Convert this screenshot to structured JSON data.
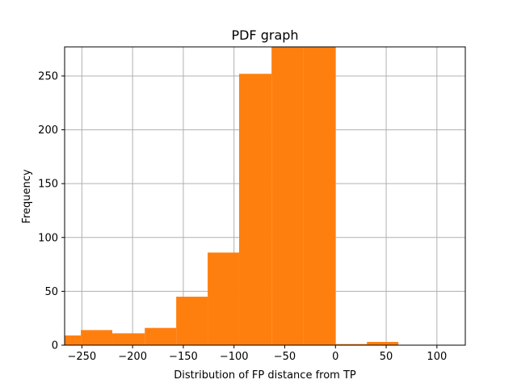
{
  "chart_data": {
    "type": "bar",
    "title": "PDF graph",
    "xlabel": "Distribution of FP distance from TP",
    "ylabel": "Frequency",
    "xlim": [
      -267,
      128
    ],
    "ylim": [
      0,
      277
    ],
    "grid": true,
    "legend": "none",
    "bar_color": "#ff7f0e",
    "grid_color": "#b0b0b0",
    "x_ticks": [
      -250,
      -200,
      -150,
      -100,
      -50,
      0,
      50,
      100
    ],
    "x_tick_labels": [
      "−250",
      "−200",
      "−150",
      "−100",
      "−50",
      "0",
      "50",
      "100"
    ],
    "y_ticks": [
      0,
      50,
      100,
      150,
      200,
      250
    ],
    "y_tick_labels": [
      "0",
      "50",
      "100",
      "150",
      "200",
      "250"
    ],
    "bins": [
      {
        "x_start": -267,
        "x_end": -251,
        "value": 9
      },
      {
        "x_start": -251,
        "x_end": -220,
        "value": 14
      },
      {
        "x_start": -220,
        "x_end": -188,
        "value": 11
      },
      {
        "x_start": -188,
        "x_end": -157,
        "value": 16
      },
      {
        "x_start": -157,
        "x_end": -126,
        "value": 45
      },
      {
        "x_start": -126,
        "x_end": -95,
        "value": 86
      },
      {
        "x_start": -95,
        "x_end": -63,
        "value": 252
      },
      {
        "x_start": -63,
        "x_end": -32,
        "value": 277
      },
      {
        "x_start": -32,
        "x_end": 0,
        "value": 277
      },
      {
        "x_start": 0,
        "x_end": 31,
        "value": 1
      },
      {
        "x_start": 31,
        "x_end": 62,
        "value": 3
      }
    ]
  }
}
